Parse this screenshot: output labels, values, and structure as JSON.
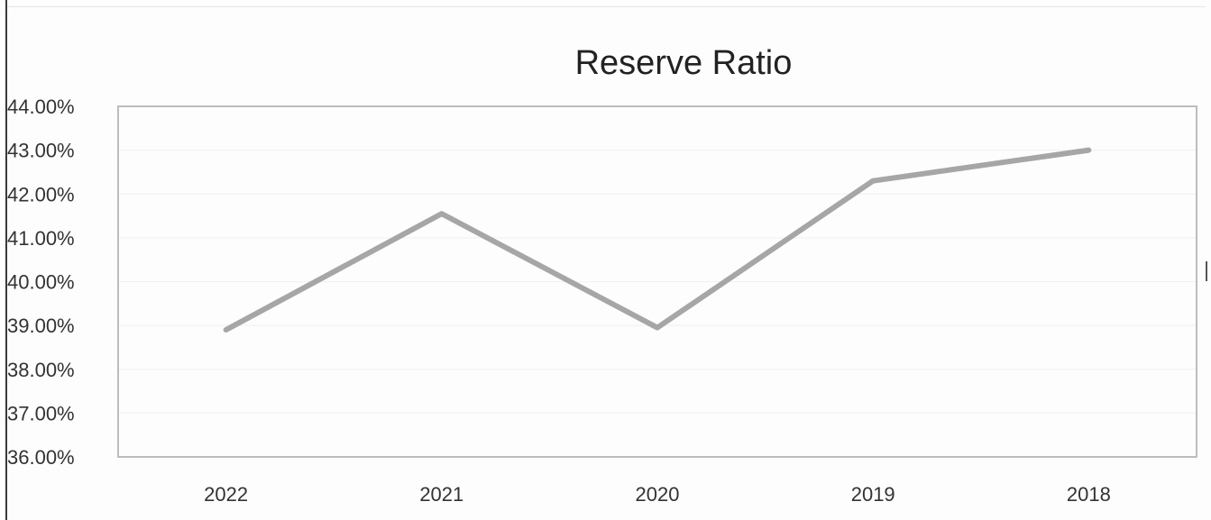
{
  "chart_data": {
    "type": "line",
    "title": "Reserve Ratio",
    "xlabel": "",
    "ylabel": "",
    "categories": [
      "2022",
      "2021",
      "2020",
      "2019",
      "2018"
    ],
    "series": [
      {
        "values": [
          38.9,
          41.55,
          38.95,
          42.3,
          43.0
        ]
      }
    ],
    "ylim": [
      36.0,
      44.0
    ],
    "yticks": [
      "36.00%",
      "37.00%",
      "38.00%",
      "39.00%",
      "40.00%",
      "41.00%",
      "42.00%",
      "43.00%",
      "44.00%"
    ],
    "grid": true,
    "legend": "none",
    "line_color": "#a6a6a6"
  }
}
